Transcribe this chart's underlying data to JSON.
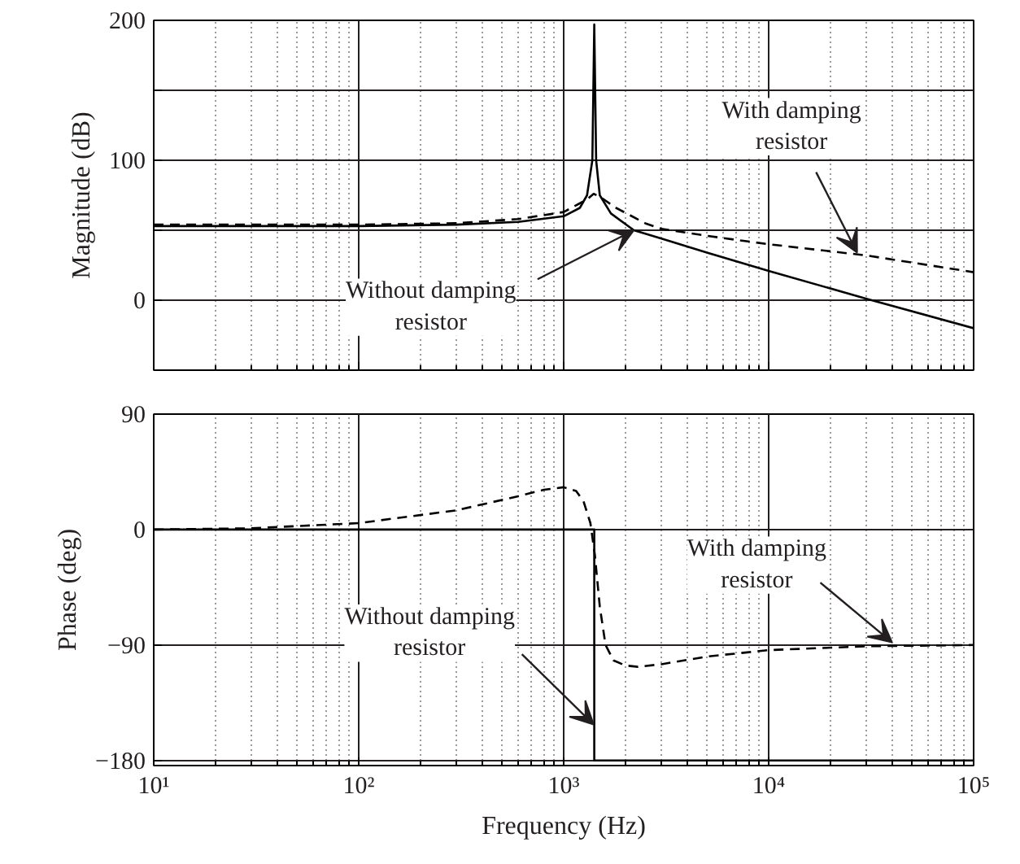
{
  "chart_data": [
    {
      "type": "line",
      "ylabel": "Magnitude (dB)",
      "log": "x",
      "grid": true,
      "tick_labels": "y",
      "xlim": [
        10,
        100000
      ],
      "xticks": [
        10,
        100,
        1000,
        10000,
        100000
      ],
      "ylim": [
        -50,
        200
      ],
      "yticks": [
        {
          "value": -50,
          "label": null
        },
        0,
        {
          "value": 50,
          "label": null
        },
        100,
        {
          "value": 150,
          "label": null
        },
        200
      ],
      "series": [
        {
          "color": "#000000",
          "line_style": "solid",
          "x": [
            10,
            100,
            300,
            600,
            1000,
            1200,
            1300,
            1380,
            1410,
            1440,
            1500,
            1700,
            2200,
            3000,
            5000,
            10000,
            30000,
            100000
          ],
          "values": [
            53,
            53,
            54,
            56,
            60,
            66,
            75,
            100,
            197,
            100,
            75,
            62,
            50,
            44,
            34,
            21,
            1,
            -20
          ]
        },
        {
          "color": "#000000",
          "line_style": "dashed",
          "x": [
            10,
            100,
            300,
            600,
            1000,
            1300,
            1400,
            1500,
            1800,
            2500,
            3000,
            5000,
            10000,
            30000,
            100000
          ],
          "values": [
            54,
            54,
            55,
            58,
            63,
            72,
            76,
            74,
            66,
            55,
            51,
            46,
            40,
            32,
            20
          ]
        }
      ],
      "annotations": [
        {
          "text": "Without damping\nresistor",
          "x": 2200,
          "y": 50
        },
        {
          "text": "With damping\nresistor",
          "x": 27000,
          "y": 34
        }
      ]
    },
    {
      "type": "line",
      "xlabel": "Frequency (Hz)",
      "ylabel": "Phase (deg)",
      "log": "x",
      "grid": true,
      "xlim": [
        10,
        100000
      ],
      "xticks": [
        {
          "value": 10,
          "label": "10¹"
        },
        {
          "value": 100,
          "label": "10²"
        },
        {
          "value": 1000,
          "label": "10³"
        },
        {
          "value": 10000,
          "label": "10⁴"
        },
        {
          "value": 100000,
          "label": "10⁵"
        }
      ],
      "ylim": [
        -184,
        90
      ],
      "yticks": [
        -180,
        -90,
        0,
        90
      ],
      "series": [
        {
          "color": "#000000",
          "line_style": "solid",
          "x": [
            10,
            1410,
            1410,
            100000
          ],
          "values": [
            0,
            0,
            -180,
            -180
          ]
        },
        {
          "color": "#000000",
          "line_style": "dashed",
          "x": [
            10,
            30,
            100,
            300,
            600,
            800,
            1000,
            1150,
            1250,
            1350,
            1420,
            1500,
            1600,
            1750,
            2000,
            2300,
            3000,
            5000,
            10000,
            30000,
            100000
          ],
          "values": [
            0,
            1,
            5,
            15,
            26,
            31,
            33,
            30,
            22,
            5,
            -20,
            -60,
            -90,
            -102,
            -106,
            -107,
            -105,
            -99,
            -94,
            -91,
            -90
          ]
        }
      ],
      "annotations": [
        {
          "text": "Without damping\nresistor",
          "x": 1400,
          "y": -152
        },
        {
          "text": "With damping\nresistor",
          "x": 40000,
          "y": -88
        }
      ]
    }
  ]
}
